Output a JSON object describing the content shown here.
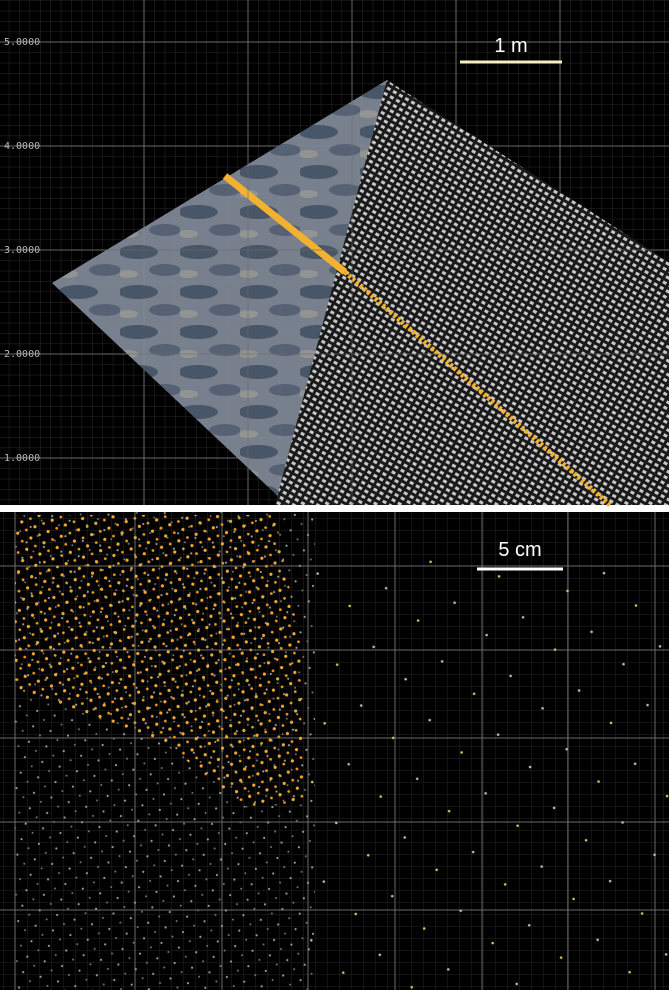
{
  "top_panel": {
    "axis_labels": [
      "5.0000",
      "4.0000",
      "3.0000",
      "2.0000",
      "1.0000"
    ],
    "scale_label": "1 m"
  },
  "bottom_panel": {
    "scale_label": "5 cm"
  }
}
